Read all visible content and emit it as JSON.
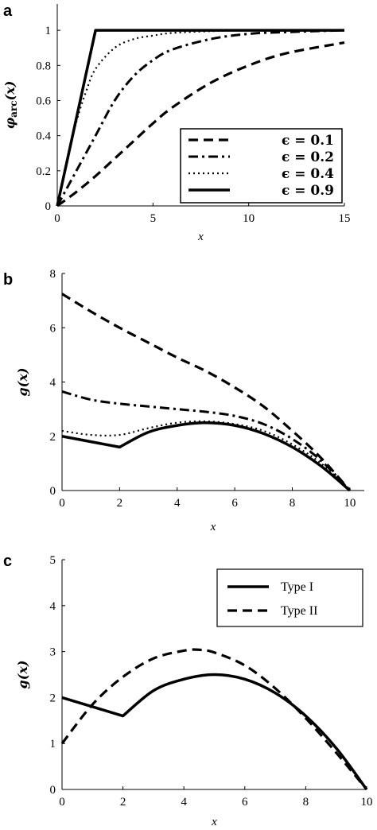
{
  "chart_data": [
    {
      "panel": "a",
      "type": "line",
      "xlabel": "x",
      "ylabel": "φarc(x)",
      "xlim": [
        0,
        15
      ],
      "ylim": [
        0,
        1.15
      ],
      "xticks": [
        0,
        5,
        10,
        15
      ],
      "yticks": [
        0,
        0.2,
        0.4,
        0.6,
        0.8,
        1
      ],
      "ytick_labels": [
        "0",
        "0.2",
        "0.4",
        "0.6",
        "0.8",
        "1"
      ],
      "grid": false,
      "legend": "bottom-right",
      "series": [
        {
          "name": "ϵ = 0.1",
          "style": "dashed",
          "x": [
            0,
            1,
            2,
            3,
            4,
            5,
            6,
            8,
            10,
            12,
            15
          ],
          "y": [
            0,
            0.08,
            0.17,
            0.27,
            0.37,
            0.47,
            0.56,
            0.7,
            0.8,
            0.87,
            0.93
          ]
        },
        {
          "name": "ϵ = 0.2",
          "style": "dashdot",
          "x": [
            0,
            1,
            2,
            3,
            4,
            5,
            6,
            8,
            10,
            12,
            15
          ],
          "y": [
            0,
            0.2,
            0.4,
            0.6,
            0.74,
            0.83,
            0.89,
            0.95,
            0.98,
            0.99,
            1
          ]
        },
        {
          "name": "ϵ = 0.4",
          "style": "dotted",
          "x": [
            0,
            0.5,
            1,
            1.5,
            2,
            3,
            4,
            5,
            6,
            8,
            10,
            15
          ],
          "y": [
            0,
            0.25,
            0.48,
            0.65,
            0.78,
            0.9,
            0.95,
            0.97,
            0.985,
            0.995,
            1,
            1
          ]
        },
        {
          "name": "ϵ = 0.9",
          "style": "solid",
          "x": [
            0,
            2,
            15
          ],
          "y": [
            0,
            1,
            1
          ]
        }
      ]
    },
    {
      "panel": "b",
      "type": "line",
      "xlabel": "x",
      "ylabel": "g(x)",
      "xlim": [
        0,
        10.5
      ],
      "ylim": [
        0,
        8
      ],
      "xticks": [
        0,
        2,
        4,
        6,
        8,
        10
      ],
      "yticks": [
        0,
        2,
        4,
        6,
        8
      ],
      "grid": false,
      "series": [
        {
          "style": "dashed",
          "x": [
            0,
            1,
            2,
            3,
            4,
            5,
            6,
            7,
            8,
            9,
            10
          ],
          "y": [
            7.25,
            6.6,
            6.0,
            5.45,
            4.9,
            4.4,
            3.8,
            3.1,
            2.2,
            1.2,
            0
          ]
        },
        {
          "style": "dashdot",
          "x": [
            0,
            1,
            2,
            3,
            4,
            5,
            6,
            7,
            8,
            9,
            10
          ],
          "y": [
            3.65,
            3.35,
            3.2,
            3.1,
            3.0,
            2.9,
            2.75,
            2.45,
            1.9,
            1.1,
            0
          ]
        },
        {
          "style": "dotted",
          "x": [
            0,
            1,
            2,
            3,
            4,
            5,
            6,
            7,
            8,
            9,
            10
          ],
          "y": [
            2.2,
            2.05,
            2.05,
            2.3,
            2.5,
            2.55,
            2.45,
            2.2,
            1.7,
            1.0,
            0
          ]
        },
        {
          "style": "solid",
          "x": [
            0,
            2,
            3,
            4,
            5,
            6,
            7,
            8,
            9,
            10
          ],
          "y": [
            2.0,
            1.6,
            2.15,
            2.4,
            2.5,
            2.4,
            2.1,
            1.6,
            0.9,
            0
          ]
        }
      ]
    },
    {
      "panel": "c",
      "type": "line",
      "xlabel": "x",
      "ylabel": "g(x)",
      "xlim": [
        0,
        10
      ],
      "ylim": [
        0,
        5
      ],
      "xticks": [
        0,
        2,
        4,
        6,
        8,
        10
      ],
      "yticks": [
        0,
        1,
        2,
        3,
        4,
        5
      ],
      "grid": false,
      "legend": "top-right",
      "series": [
        {
          "name": "Type I",
          "style": "solid",
          "x": [
            0,
            2,
            3,
            4,
            5,
            6,
            7,
            8,
            9,
            10
          ],
          "y": [
            2.0,
            1.6,
            2.15,
            2.4,
            2.5,
            2.4,
            2.1,
            1.6,
            0.9,
            0
          ]
        },
        {
          "name": "Type II",
          "style": "dashed",
          "x": [
            0,
            1,
            2,
            3,
            4,
            4.5,
            5,
            6,
            7,
            8,
            9,
            10
          ],
          "y": [
            1.0,
            1.85,
            2.45,
            2.85,
            3.02,
            3.04,
            2.98,
            2.7,
            2.2,
            1.55,
            0.8,
            0
          ]
        }
      ]
    }
  ]
}
